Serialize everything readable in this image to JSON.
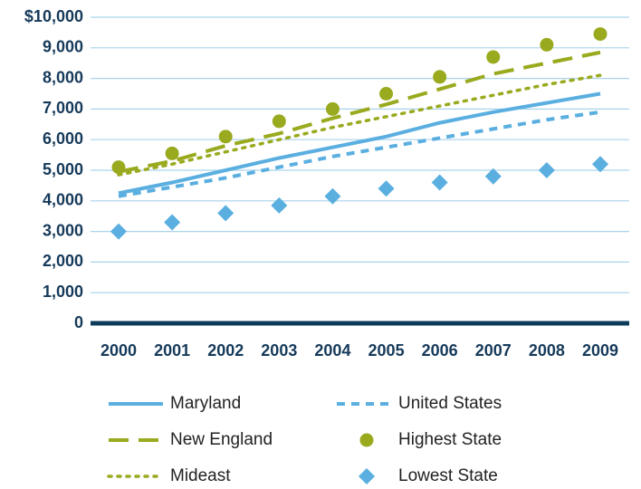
{
  "chart_data": {
    "type": "line",
    "categories": [
      "2000",
      "2001",
      "2002",
      "2003",
      "2004",
      "2005",
      "2006",
      "2007",
      "2008",
      "2009"
    ],
    "ylim": [
      0,
      10000
    ],
    "yticks": [
      0,
      {
        "value": 1000,
        "label": "1,000"
      },
      {
        "value": 2000,
        "label": "2,000"
      },
      {
        "value": 3000,
        "label": "3,000"
      },
      {
        "value": 4000,
        "label": "4,000"
      },
      {
        "value": 5000,
        "label": "5,000"
      },
      {
        "value": 6000,
        "label": "6,000"
      },
      {
        "value": 7000,
        "label": "7,000"
      },
      {
        "value": 8000,
        "label": "8,000"
      },
      {
        "value": 9000,
        "label": "9,000"
      },
      {
        "value": 10000,
        "label": "$10,000"
      }
    ],
    "grid": true,
    "legend": "bottom",
    "series": [
      {
        "name": "Maryland",
        "color": "#5aafe0",
        "style": "solid",
        "values": [
          4250,
          4600,
          5000,
          5400,
          5750,
          6100,
          6550,
          6900,
          7200,
          7500
        ]
      },
      {
        "name": "United States",
        "color": "#5aafe0",
        "style": "dashed",
        "values": [
          4150,
          4450,
          4750,
          5100,
          5450,
          5750,
          6050,
          6350,
          6650,
          6900
        ]
      },
      {
        "name": "New England",
        "color": "#9aaa1f",
        "style": "longdash",
        "values": [
          4950,
          5300,
          5800,
          6200,
          6700,
          7150,
          7650,
          8150,
          8500,
          8850
        ]
      },
      {
        "name": "Highest State",
        "color": "#9aaa1f",
        "style": "circle",
        "values": [
          5100,
          5550,
          6100,
          6600,
          7000,
          7500,
          8050,
          8700,
          9100,
          9450
        ]
      },
      {
        "name": "Mideast",
        "color": "#9aaa1f",
        "style": "dotted",
        "values": [
          4850,
          5200,
          5600,
          6000,
          6400,
          6750,
          7100,
          7450,
          7800,
          8100
        ]
      },
      {
        "name": "Lowest State",
        "color": "#5aafe0",
        "style": "diamond",
        "values": [
          3000,
          3300,
          3600,
          3850,
          4150,
          4400,
          4600,
          4800,
          5000,
          5200
        ]
      }
    ]
  }
}
